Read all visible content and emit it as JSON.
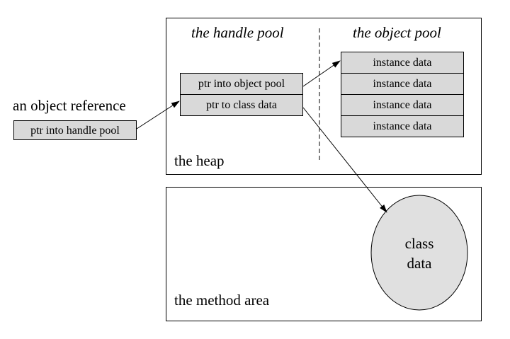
{
  "reference": {
    "label": "an object reference",
    "cell": "ptr into handle pool"
  },
  "heap": {
    "label": "the heap",
    "handle_pool": {
      "heading": "the handle pool",
      "cells": [
        "ptr into object pool",
        "ptr to class data"
      ]
    },
    "object_pool": {
      "heading": "the object pool",
      "cells": [
        "instance data",
        "instance data",
        "instance data",
        "instance data"
      ]
    }
  },
  "method_area": {
    "label": "the method area",
    "class_data": [
      "class",
      "data"
    ]
  },
  "colors": {
    "cell_fill": "#d9d9d9",
    "ellipse_fill": "#e0e0e0",
    "line": "#000000"
  }
}
